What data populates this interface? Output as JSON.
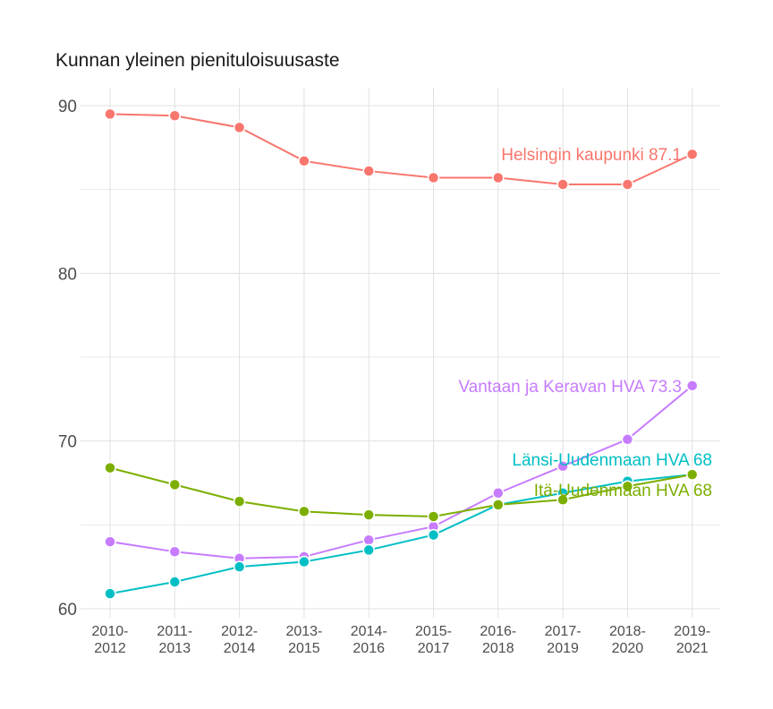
{
  "chart_data": {
    "type": "line",
    "title": "Kunnan yleinen pienituloisuusaste",
    "xlabel": "",
    "ylabel": "",
    "categories": [
      "2010-2012",
      "2011-2013",
      "2012-2014",
      "2013-2015",
      "2014-2016",
      "2015-2017",
      "2016-2018",
      "2017-2019",
      "2018-2020",
      "2019-2021"
    ],
    "ylim": [
      59.5,
      90.5
    ],
    "yticks": [
      60,
      70,
      80,
      90
    ],
    "grid": true,
    "legend": "direct labels at series end",
    "series": [
      {
        "name": "Helsingin kaupunki",
        "label": "Helsingin kaupunki 87.1",
        "color": "#F8766D",
        "values": [
          89.5,
          89.4,
          88.7,
          86.7,
          86.1,
          85.7,
          85.7,
          85.3,
          85.3,
          87.1
        ]
      },
      {
        "name": "Vantaan ja Keravan HVA",
        "label": "Vantaan ja Keravan HVA 73.3",
        "color": "#C77CFF",
        "values": [
          64.0,
          63.4,
          63.0,
          63.1,
          64.1,
          64.9,
          66.9,
          68.5,
          70.1,
          73.3
        ]
      },
      {
        "name": "Länsi-Uudenmaan HVA",
        "label": "Länsi-Uudenmaan HVA 68",
        "color": "#00BFC4",
        "values": [
          60.9,
          61.6,
          62.5,
          62.8,
          63.5,
          64.4,
          66.2,
          66.9,
          67.6,
          68.0
        ]
      },
      {
        "name": "Itä-Uudenmaan HVA",
        "label": "Itä-Uudenmaan HVA 68",
        "color": "#7CAE00",
        "values": [
          68.4,
          67.4,
          66.4,
          65.8,
          65.6,
          65.5,
          66.2,
          66.5,
          67.3,
          68.0
        ]
      }
    ]
  }
}
